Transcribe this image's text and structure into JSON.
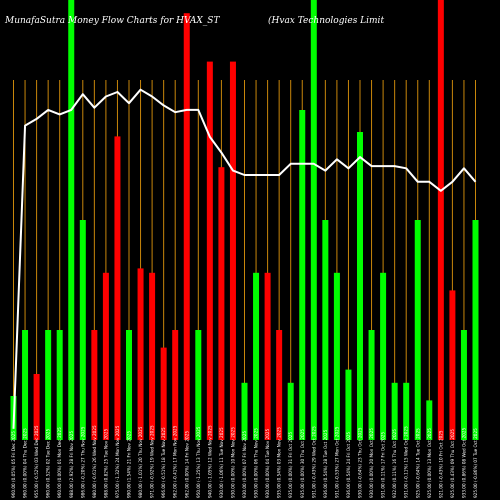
{
  "chart_data": {
    "type": "bar",
    "title_left": "MunafaSutra Money Flow  Charts for HVAX_ST",
    "title_right": "(Hvax Technologies Limit",
    "colors": {
      "background": "#000000",
      "up": "#00ff00",
      "down": "#ff0000",
      "grid": "#c8860b",
      "price_line": "#ffffff"
    },
    "ylim": [
      0,
      100
    ],
    "grid": true,
    "categories": [
      "960.00 (0.05%) 05 Fri Dec 2025",
      "960.00 (0.00%) 04 Thu Dec 2025",
      "955.00 (-0.52%) 03 Wed Dec 2025",
      "960.00 (0.52%) 02 Tue Dec 2025",
      "960.00 (0.00%) 01 Mon Dec 2025",
      "988.00 (2.92%) 28 Fri Nov 2025",
      "986.00 (-0.20%) 27 Thu Nov 2025",
      "980.00 (-0.61%) 26 Wed Nov 2025",
      "988.00 (0.82%) 25 Tue Nov 2025",
      "975.00 (-1.32%) 24 Mon Nov 2025",
      "990.00 (1.54%) 21 Fri Nov 2025",
      "980.00 (-1.01%) 20 Thu Nov 2025",
      "971.00 (-0.92%) 19 Wed Nov 2025",
      "966.00 (-0.51%) 18 Tue Nov 2025",
      "962.00 (-0.41%) 17 Mon Nov 2025",
      "962.00 (0.00%) 14 Fri Nov 2025",
      "950.00 (-1.25%) 13 Thu Nov 2025",
      "940.00 (-1.05%) 12 Wed Nov 2025",
      "930.00 (-1.06%) 11 Tue Nov 2025",
      "930.00 (0.00%) 10 Mon Nov 2025",
      "930.00 (0.00%) 07 Fri Nov 2025",
      "930.00 (0.00%) 06 Thu Nov 2025",
      "930.00 (0.00%) 04 Tue Nov 2025",
      "935.00 (0.54%) 03 Mon Nov 2025",
      "935.00 (0.00%) 31 Fri Oct 2025",
      "935.00 (0.00%) 30 Thu Oct 2025",
      "931.00 (-0.43%) 29 Wed Oct 2025",
      "936.00 (0.54%) 28 Tue Oct 2025",
      "931.00 (-0.53%) 27 Mon Oct 2025",
      "936.00 (0.54%) 24 Fri Oct 2025",
      "930.00 (-0.64%) 23 Thu Oct 2025",
      "930.00 (0.00%) 20 Mon Oct 2025",
      "931.00 (0.11%) 17 Fri Oct 2025",
      "932.00 (0.11%) 16 Thu Oct 2025",
      "931.00 (-0.11%) 15 Wed Oct 2025",
      "925.00 (-0.64%) 14 Tue Oct 2025",
      "925.00 (0.00%) 13 Mon Oct 2025",
      "921.00 (-0.43%) 10 Fri Oct 2025",
      "925.00 (0.43%) 09 Thu Oct 2025",
      "933.00 (0.86%) 08 Wed Oct 2025",
      "925.00 (-0.86%) 07 Tue Oct 2025"
    ],
    "series": [
      {
        "values": [
          10,
          25,
          15,
          25,
          25,
          100,
          50,
          25,
          38,
          69,
          25,
          39,
          38,
          21,
          25,
          97,
          25,
          86,
          62,
          86,
          13,
          38,
          38,
          25,
          13,
          75,
          100,
          50,
          38,
          16,
          70,
          25,
          38,
          13,
          13,
          50,
          9,
          100,
          34,
          25,
          50
        ],
        "colors": [
          "up",
          "up",
          "down",
          "up",
          "up",
          "up",
          "up",
          "down",
          "down",
          "down",
          "up",
          "down",
          "down",
          "down",
          "down",
          "down",
          "up",
          "down",
          "down",
          "down",
          "up",
          "up",
          "down",
          "down",
          "up",
          "up",
          "up",
          "up",
          "up",
          "up",
          "up",
          "up",
          "up",
          "up",
          "up",
          "up",
          "up",
          "down",
          "down",
          "up",
          "up"
        ]
      },
      {
        "type": "line",
        "values": [
          820,
          955,
          958,
          962,
          960,
          962,
          969,
          963,
          968,
          970,
          965,
          971,
          968,
          964,
          961,
          962,
          962,
          950,
          943,
          935,
          933,
          933,
          933,
          933,
          938,
          938,
          938,
          935,
          940,
          936,
          941,
          937,
          937,
          937,
          936,
          930,
          930,
          926,
          930,
          936,
          930
        ]
      }
    ],
    "price_ylim": [
      815,
      978
    ]
  }
}
